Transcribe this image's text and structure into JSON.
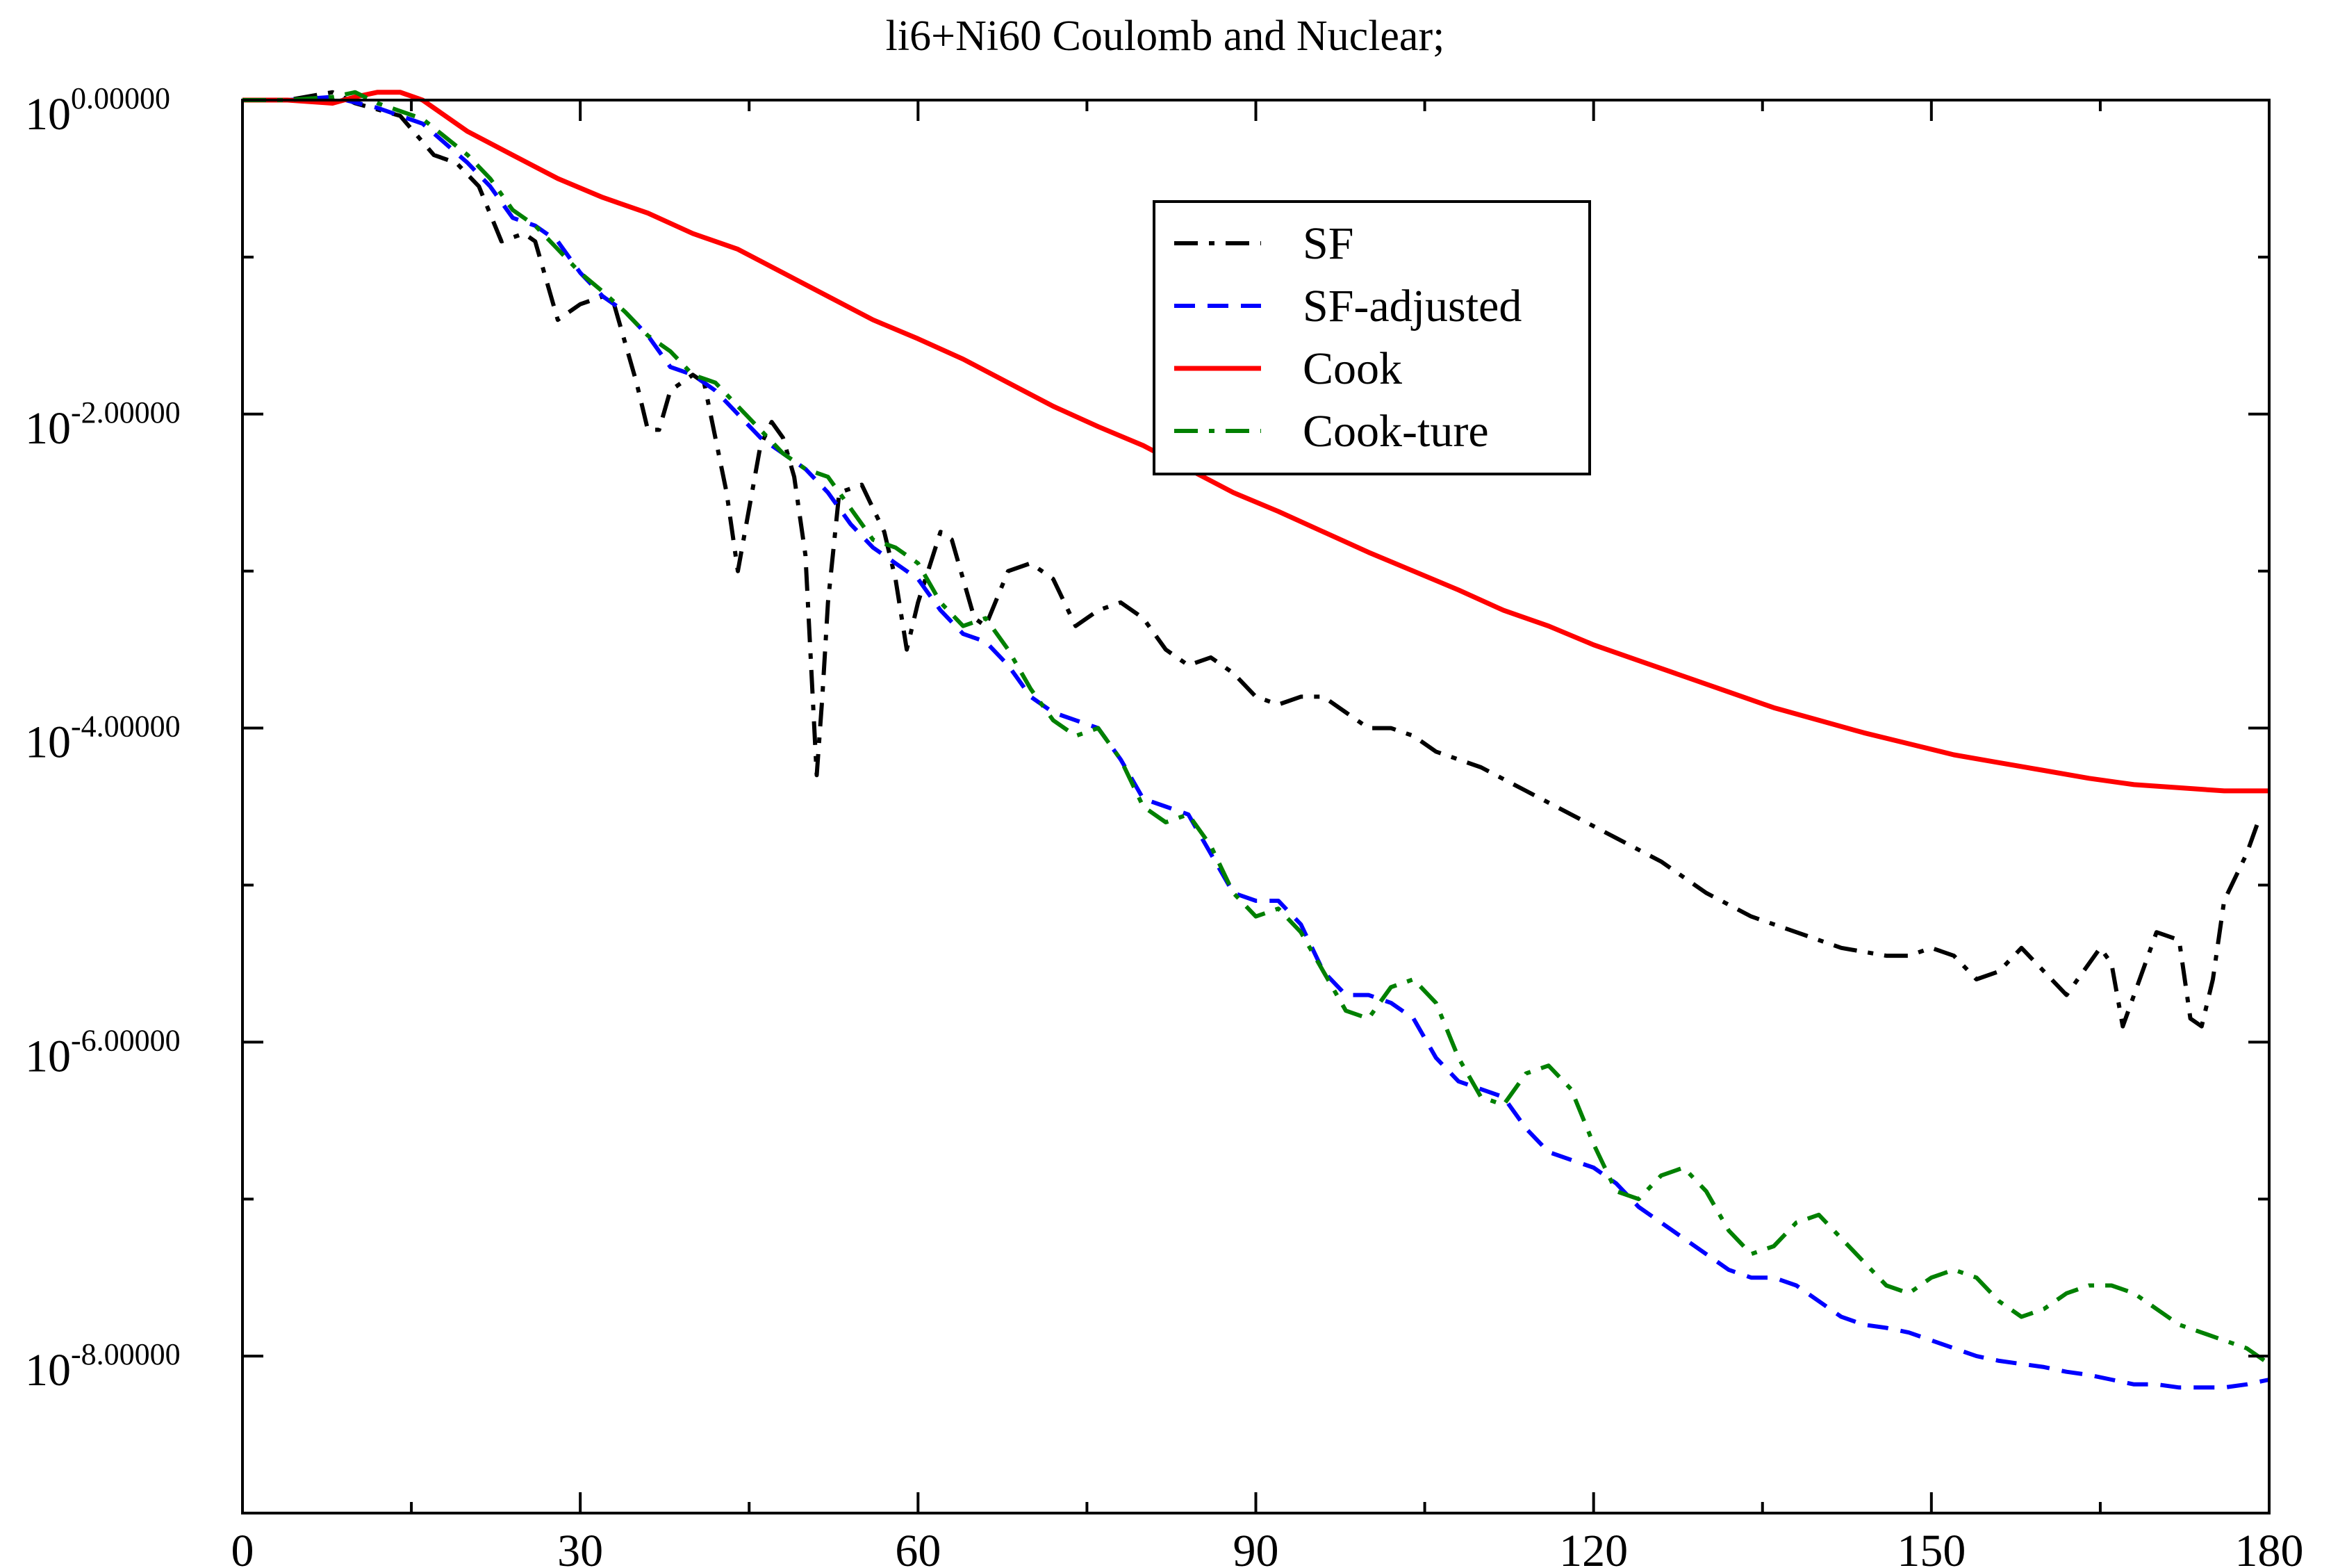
{
  "chart_data": {
    "type": "line",
    "title": "li6+Ni60 Coulomb and Nuclear;",
    "xlabel": "",
    "ylabel": "",
    "xlim": [
      0,
      180
    ],
    "ylim": [
      -9.0,
      0.0
    ],
    "y_scale": "log10",
    "grid": false,
    "legend_position": "top-center-right",
    "x_ticks": [
      "0",
      "30",
      "60",
      "90",
      "120",
      "150",
      "180"
    ],
    "y_ticks": [
      {
        "base": "10",
        "exp": "0.00000",
        "value": 0
      },
      {
        "base": "10",
        "exp": "-2.00000",
        "value": -2
      },
      {
        "base": "10",
        "exp": "-4.00000",
        "value": -4
      },
      {
        "base": "10",
        "exp": "-6.00000",
        "value": -6
      },
      {
        "base": "10",
        "exp": "-8.00000",
        "value": -8
      }
    ],
    "series": [
      {
        "name": "SF",
        "color": "#000000",
        "dash": "dashdot",
        "points": [
          [
            0,
            0.0
          ],
          [
            4,
            0.0
          ],
          [
            8,
            0.05
          ],
          [
            10,
            -0.02
          ],
          [
            14,
            -0.1
          ],
          [
            17,
            -0.35
          ],
          [
            19,
            -0.4
          ],
          [
            21,
            -0.55
          ],
          [
            23,
            -0.9
          ],
          [
            25,
            -0.85
          ],
          [
            26,
            -0.9
          ],
          [
            28,
            -1.4
          ],
          [
            30,
            -1.3
          ],
          [
            32,
            -1.25
          ],
          [
            33,
            -1.3
          ],
          [
            35,
            -1.8
          ],
          [
            36,
            -2.1
          ],
          [
            37,
            -2.1
          ],
          [
            38,
            -1.85
          ],
          [
            40,
            -1.75
          ],
          [
            41,
            -1.8
          ],
          [
            43,
            -2.5
          ],
          [
            44,
            -3.0
          ],
          [
            45,
            -2.6
          ],
          [
            46,
            -2.2
          ],
          [
            47,
            -2.05
          ],
          [
            48,
            -2.15
          ],
          [
            49,
            -2.4
          ],
          [
            50,
            -2.9
          ],
          [
            51,
            -4.3
          ],
          [
            51.5,
            -3.8
          ],
          [
            52,
            -3.2
          ],
          [
            53,
            -2.5
          ],
          [
            55,
            -2.45
          ],
          [
            57,
            -2.75
          ],
          [
            58,
            -3.05
          ],
          [
            59,
            -3.5
          ],
          [
            60,
            -3.2
          ],
          [
            62,
            -2.75
          ],
          [
            63,
            -2.8
          ],
          [
            65,
            -3.3
          ],
          [
            66,
            -3.35
          ],
          [
            68,
            -3.0
          ],
          [
            70,
            -2.95
          ],
          [
            72,
            -3.05
          ],
          [
            74,
            -3.35
          ],
          [
            76,
            -3.25
          ],
          [
            78,
            -3.2
          ],
          [
            80,
            -3.3
          ],
          [
            82,
            -3.5
          ],
          [
            84,
            -3.6
          ],
          [
            86,
            -3.55
          ],
          [
            88,
            -3.65
          ],
          [
            90,
            -3.8
          ],
          [
            92,
            -3.85
          ],
          [
            94,
            -3.8
          ],
          [
            96,
            -3.8
          ],
          [
            98,
            -3.9
          ],
          [
            100,
            -4.0
          ],
          [
            102,
            -4.0
          ],
          [
            104,
            -4.05
          ],
          [
            106,
            -4.15
          ],
          [
            108,
            -4.2
          ],
          [
            110,
            -4.25
          ],
          [
            114,
            -4.4
          ],
          [
            118,
            -4.55
          ],
          [
            122,
            -4.7
          ],
          [
            126,
            -4.85
          ],
          [
            130,
            -5.05
          ],
          [
            134,
            -5.2
          ],
          [
            138,
            -5.3
          ],
          [
            142,
            -5.4
          ],
          [
            146,
            -5.45
          ],
          [
            148,
            -5.45
          ],
          [
            150,
            -5.4
          ],
          [
            152,
            -5.45
          ],
          [
            154,
            -5.6
          ],
          [
            156,
            -5.55
          ],
          [
            158,
            -5.4
          ],
          [
            160,
            -5.55
          ],
          [
            162,
            -5.7
          ],
          [
            164,
            -5.5
          ],
          [
            165,
            -5.4
          ],
          [
            166,
            -5.5
          ],
          [
            167,
            -5.9
          ],
          [
            168,
            -5.7
          ],
          [
            170,
            -5.3
          ],
          [
            172,
            -5.35
          ],
          [
            173,
            -5.85
          ],
          [
            174,
            -5.9
          ],
          [
            175,
            -5.6
          ],
          [
            176,
            -5.1
          ],
          [
            178,
            -4.8
          ],
          [
            179,
            -4.6
          ]
        ]
      },
      {
        "name": "SF-adjusted",
        "color": "#0000ff",
        "dash": "dashed",
        "points": [
          [
            0,
            0.0
          ],
          [
            4,
            0.0
          ],
          [
            8,
            0.02
          ],
          [
            12,
            -0.05
          ],
          [
            16,
            -0.15
          ],
          [
            20,
            -0.4
          ],
          [
            22,
            -0.55
          ],
          [
            24,
            -0.75
          ],
          [
            26,
            -0.8
          ],
          [
            28,
            -0.9
          ],
          [
            30,
            -1.1
          ],
          [
            32,
            -1.25
          ],
          [
            34,
            -1.35
          ],
          [
            36,
            -1.5
          ],
          [
            38,
            -1.7
          ],
          [
            40,
            -1.75
          ],
          [
            42,
            -1.85
          ],
          [
            44,
            -2.0
          ],
          [
            46,
            -2.15
          ],
          [
            48,
            -2.25
          ],
          [
            50,
            -2.35
          ],
          [
            52,
            -2.5
          ],
          [
            54,
            -2.7
          ],
          [
            56,
            -2.85
          ],
          [
            58,
            -2.95
          ],
          [
            60,
            -3.05
          ],
          [
            62,
            -3.25
          ],
          [
            64,
            -3.4
          ],
          [
            66,
            -3.45
          ],
          [
            68,
            -3.6
          ],
          [
            70,
            -3.8
          ],
          [
            72,
            -3.9
          ],
          [
            74,
            -3.95
          ],
          [
            76,
            -4.0
          ],
          [
            78,
            -4.2
          ],
          [
            80,
            -4.45
          ],
          [
            82,
            -4.5
          ],
          [
            84,
            -4.55
          ],
          [
            86,
            -4.8
          ],
          [
            88,
            -5.05
          ],
          [
            90,
            -5.1
          ],
          [
            92,
            -5.1
          ],
          [
            94,
            -5.25
          ],
          [
            96,
            -5.55
          ],
          [
            98,
            -5.7
          ],
          [
            100,
            -5.7
          ],
          [
            102,
            -5.75
          ],
          [
            104,
            -5.85
          ],
          [
            106,
            -6.1
          ],
          [
            108,
            -6.25
          ],
          [
            110,
            -6.3
          ],
          [
            112,
            -6.35
          ],
          [
            114,
            -6.55
          ],
          [
            116,
            -6.7
          ],
          [
            118,
            -6.75
          ],
          [
            120,
            -6.8
          ],
          [
            122,
            -6.9
          ],
          [
            124,
            -7.05
          ],
          [
            126,
            -7.15
          ],
          [
            128,
            -7.25
          ],
          [
            130,
            -7.35
          ],
          [
            132,
            -7.45
          ],
          [
            134,
            -7.5
          ],
          [
            136,
            -7.5
          ],
          [
            138,
            -7.55
          ],
          [
            140,
            -7.65
          ],
          [
            142,
            -7.75
          ],
          [
            144,
            -7.8
          ],
          [
            146,
            -7.82
          ],
          [
            148,
            -7.85
          ],
          [
            150,
            -7.9
          ],
          [
            152,
            -7.95
          ],
          [
            154,
            -8.0
          ],
          [
            156,
            -8.03
          ],
          [
            158,
            -8.05
          ],
          [
            160,
            -8.07
          ],
          [
            162,
            -8.1
          ],
          [
            164,
            -8.12
          ],
          [
            166,
            -8.15
          ],
          [
            168,
            -8.18
          ],
          [
            170,
            -8.18
          ],
          [
            172,
            -8.2
          ],
          [
            174,
            -8.2
          ],
          [
            176,
            -8.2
          ],
          [
            178,
            -8.18
          ],
          [
            180,
            -8.15
          ]
        ]
      },
      {
        "name": "Cook",
        "color": "#ff0000",
        "dash": "solid",
        "points": [
          [
            0,
            0.0
          ],
          [
            4,
            0.0
          ],
          [
            8,
            -0.02
          ],
          [
            10,
            0.02
          ],
          [
            12,
            0.05
          ],
          [
            14,
            0.05
          ],
          [
            16,
            0.0
          ],
          [
            18,
            -0.1
          ],
          [
            20,
            -0.2
          ],
          [
            24,
            -0.35
          ],
          [
            28,
            -0.5
          ],
          [
            32,
            -0.62
          ],
          [
            36,
            -0.72
          ],
          [
            40,
            -0.85
          ],
          [
            44,
            -0.95
          ],
          [
            48,
            -1.1
          ],
          [
            52,
            -1.25
          ],
          [
            56,
            -1.4
          ],
          [
            60,
            -1.52
          ],
          [
            64,
            -1.65
          ],
          [
            68,
            -1.8
          ],
          [
            72,
            -1.95
          ],
          [
            76,
            -2.08
          ],
          [
            80,
            -2.2
          ],
          [
            84,
            -2.35
          ],
          [
            88,
            -2.5
          ],
          [
            92,
            -2.62
          ],
          [
            96,
            -2.75
          ],
          [
            100,
            -2.88
          ],
          [
            104,
            -3.0
          ],
          [
            108,
            -3.12
          ],
          [
            112,
            -3.25
          ],
          [
            116,
            -3.35
          ],
          [
            120,
            -3.47
          ],
          [
            124,
            -3.57
          ],
          [
            128,
            -3.67
          ],
          [
            132,
            -3.77
          ],
          [
            136,
            -3.87
          ],
          [
            140,
            -3.95
          ],
          [
            144,
            -4.03
          ],
          [
            148,
            -4.1
          ],
          [
            152,
            -4.17
          ],
          [
            156,
            -4.22
          ],
          [
            160,
            -4.27
          ],
          [
            164,
            -4.32
          ],
          [
            168,
            -4.36
          ],
          [
            172,
            -4.38
          ],
          [
            176,
            -4.4
          ],
          [
            180,
            -4.4
          ]
        ]
      },
      {
        "name": "Cook-ture",
        "color": "#008000",
        "dash": "dashdot",
        "points": [
          [
            0,
            0.0
          ],
          [
            4,
            0.0
          ],
          [
            8,
            0.02
          ],
          [
            10,
            0.05
          ],
          [
            12,
            -0.02
          ],
          [
            16,
            -0.12
          ],
          [
            20,
            -0.35
          ],
          [
            22,
            -0.5
          ],
          [
            24,
            -0.7
          ],
          [
            26,
            -0.8
          ],
          [
            28,
            -0.95
          ],
          [
            30,
            -1.1
          ],
          [
            32,
            -1.22
          ],
          [
            34,
            -1.35
          ],
          [
            36,
            -1.5
          ],
          [
            38,
            -1.6
          ],
          [
            40,
            -1.75
          ],
          [
            42,
            -1.8
          ],
          [
            44,
            -1.95
          ],
          [
            46,
            -2.1
          ],
          [
            48,
            -2.25
          ],
          [
            50,
            -2.35
          ],
          [
            52,
            -2.4
          ],
          [
            54,
            -2.6
          ],
          [
            56,
            -2.8
          ],
          [
            58,
            -2.85
          ],
          [
            60,
            -2.95
          ],
          [
            62,
            -3.2
          ],
          [
            64,
            -3.35
          ],
          [
            66,
            -3.3
          ],
          [
            68,
            -3.5
          ],
          [
            70,
            -3.75
          ],
          [
            72,
            -3.95
          ],
          [
            74,
            -4.05
          ],
          [
            76,
            -4.0
          ],
          [
            78,
            -4.2
          ],
          [
            80,
            -4.5
          ],
          [
            82,
            -4.6
          ],
          [
            84,
            -4.55
          ],
          [
            86,
            -4.75
          ],
          [
            88,
            -5.05
          ],
          [
            90,
            -5.2
          ],
          [
            92,
            -5.15
          ],
          [
            94,
            -5.3
          ],
          [
            96,
            -5.55
          ],
          [
            98,
            -5.8
          ],
          [
            100,
            -5.85
          ],
          [
            102,
            -5.65
          ],
          [
            104,
            -5.6
          ],
          [
            106,
            -5.75
          ],
          [
            108,
            -6.1
          ],
          [
            110,
            -6.35
          ],
          [
            112,
            -6.4
          ],
          [
            114,
            -6.2
          ],
          [
            116,
            -6.15
          ],
          [
            118,
            -6.3
          ],
          [
            120,
            -6.65
          ],
          [
            122,
            -6.95
          ],
          [
            124,
            -7.0
          ],
          [
            126,
            -6.85
          ],
          [
            128,
            -6.8
          ],
          [
            130,
            -6.95
          ],
          [
            132,
            -7.2
          ],
          [
            134,
            -7.35
          ],
          [
            136,
            -7.3
          ],
          [
            138,
            -7.15
          ],
          [
            140,
            -7.1
          ],
          [
            142,
            -7.25
          ],
          [
            144,
            -7.4
          ],
          [
            146,
            -7.55
          ],
          [
            148,
            -7.6
          ],
          [
            150,
            -7.5
          ],
          [
            152,
            -7.45
          ],
          [
            154,
            -7.5
          ],
          [
            156,
            -7.65
          ],
          [
            158,
            -7.75
          ],
          [
            160,
            -7.7
          ],
          [
            162,
            -7.6
          ],
          [
            164,
            -7.55
          ],
          [
            166,
            -7.55
          ],
          [
            168,
            -7.6
          ],
          [
            170,
            -7.7
          ],
          [
            172,
            -7.8
          ],
          [
            174,
            -7.85
          ],
          [
            176,
            -7.9
          ],
          [
            178,
            -7.95
          ],
          [
            180,
            -8.05
          ]
        ]
      }
    ]
  }
}
